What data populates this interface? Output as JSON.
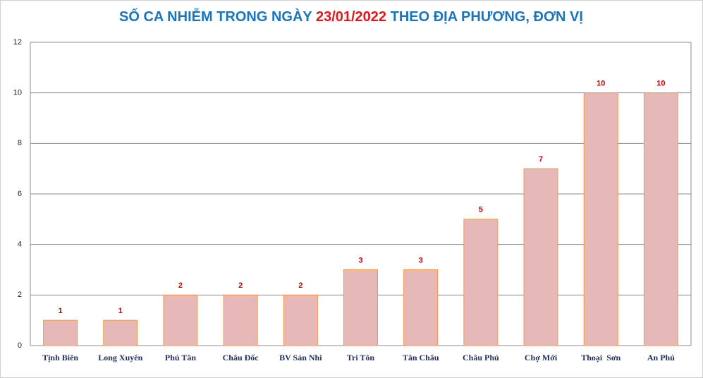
{
  "chart_data": {
    "type": "bar",
    "title": [
      "SỐ CA NHIỄM TRONG NGÀY",
      "23/01/2022",
      "THEO ĐỊA PHƯƠNG, ĐƠN VỊ"
    ],
    "title_color": "#1b75bc",
    "title_highlight_color": "#e8141c",
    "categories": [
      "Tịnh Biên",
      "Long Xuyên",
      "Phú Tân",
      "Châu Đốc",
      "BV Sản Nhi",
      "Tri Tôn",
      "Tân Châu",
      "Châu Phú",
      "Chợ Mới",
      "Thoại  Sơn",
      "An Phú"
    ],
    "values": [
      1,
      1,
      2,
      2,
      2,
      3,
      3,
      5,
      7,
      10,
      10
    ],
    "color": "#e6b8b7",
    "edge_color": "#f79646",
    "label_color": "#c00000",
    "ylim": [
      0,
      12
    ],
    "yticks": [
      0,
      2,
      4,
      6,
      8,
      10,
      12
    ],
    "grid": true
  }
}
